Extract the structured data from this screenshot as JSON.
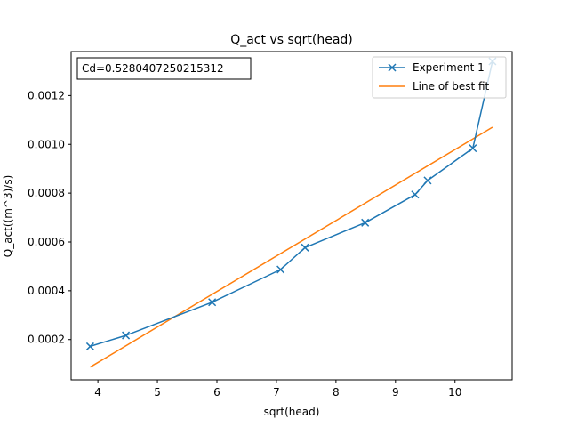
{
  "chart_data": {
    "type": "line",
    "title": "Q_act vs sqrt(head)",
    "xlabel": "sqrt(head)",
    "ylabel": "Q_act((m^3)/s)",
    "xlim": [
      3.55,
      10.96
    ],
    "ylim": [
      3.5e-05,
      0.00138
    ],
    "xticks": [
      4,
      5,
      6,
      7,
      8,
      9,
      10
    ],
    "xtick_labels": [
      "4",
      "5",
      "6",
      "7",
      "8",
      "9",
      "10"
    ],
    "yticks": [
      0.0002,
      0.0004,
      0.0006,
      0.0008,
      0.001,
      0.0012
    ],
    "ytick_labels": [
      "0.0002",
      "0.0004",
      "0.0006",
      "0.0008",
      "0.0010",
      "0.0012"
    ],
    "grid": false,
    "legend_position": "top-right",
    "series": [
      {
        "name": "Experiment 1",
        "color": "#1f77b4",
        "marker": "x",
        "x": [
          3.87,
          4.47,
          5.92,
          7.07,
          7.48,
          8.49,
          9.33,
          9.54,
          10.3,
          10.63
        ],
        "y": [
          0.000172,
          0.000217,
          0.000353,
          0.000487,
          0.000577,
          0.000679,
          0.000794,
          0.000852,
          0.000984,
          0.00134
        ]
      },
      {
        "name": "Line of best fit",
        "color": "#ff7f0e",
        "marker": "none",
        "x": [
          3.87,
          10.63
        ],
        "y": [
          8.7e-05,
          0.00107
        ]
      }
    ],
    "annotation": "Cd=0.5280407250215312"
  }
}
